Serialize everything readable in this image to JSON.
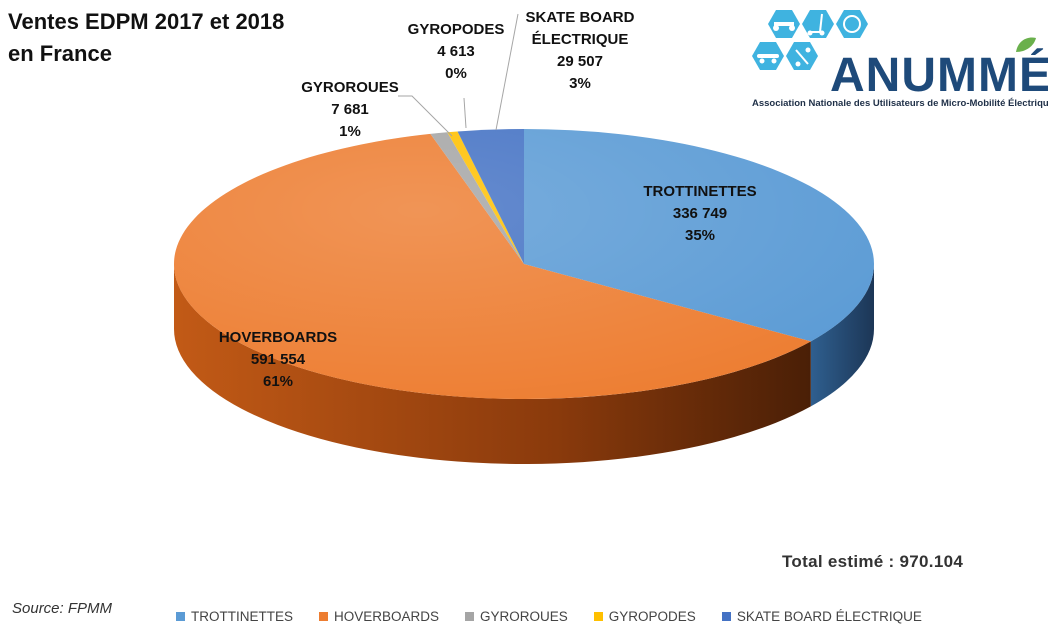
{
  "title_line1": "Ventes EDPM 2017 et 2018",
  "title_line2": "en France",
  "total": "Total estimé : 970.104",
  "source": "Source: FPMM",
  "logo": {
    "name": "ANUMMÉ",
    "subtitle": "Association Nationale des Utilisateurs de Micro-Mobilité Électrique",
    "icons": [
      "hoverboard-icon",
      "scooter-icon",
      "unicycle-icon",
      "skateboard-icon",
      "leaf-icon"
    ]
  },
  "chart_data": {
    "type": "pie",
    "style": "3d",
    "title": "Ventes EDPM 2017 et 2018 en France",
    "legend_position": "bottom",
    "slices": [
      {
        "name": "TROTTINETTES",
        "value": 336749,
        "value_label": "336 749",
        "percent_label": "35%",
        "color": "#5b9bd5"
      },
      {
        "name": "HOVERBOARDS",
        "value": 591554,
        "value_label": "591 554",
        "percent_label": "61%",
        "color": "#ed7d31"
      },
      {
        "name": "GYROROUES",
        "value": 7681,
        "value_label": "7 681",
        "percent_label": "1%",
        "color": "#a5a5a5"
      },
      {
        "name": "GYROPODES",
        "value": 4613,
        "value_label": "4 613",
        "percent_label": "0%",
        "color": "#ffc000"
      },
      {
        "name": "SKATE BOARD ÉLECTRIQUE",
        "value": 29507,
        "value_label": "29 507",
        "percent_label": "3%",
        "color": "#4472c4"
      }
    ],
    "data_label_names": [
      "TROTTINETTES",
      "HOVERBOARDS",
      "GYROROUES",
      "GYROPODES",
      "SKATE BOARD ÉLECTRIQUE"
    ]
  }
}
